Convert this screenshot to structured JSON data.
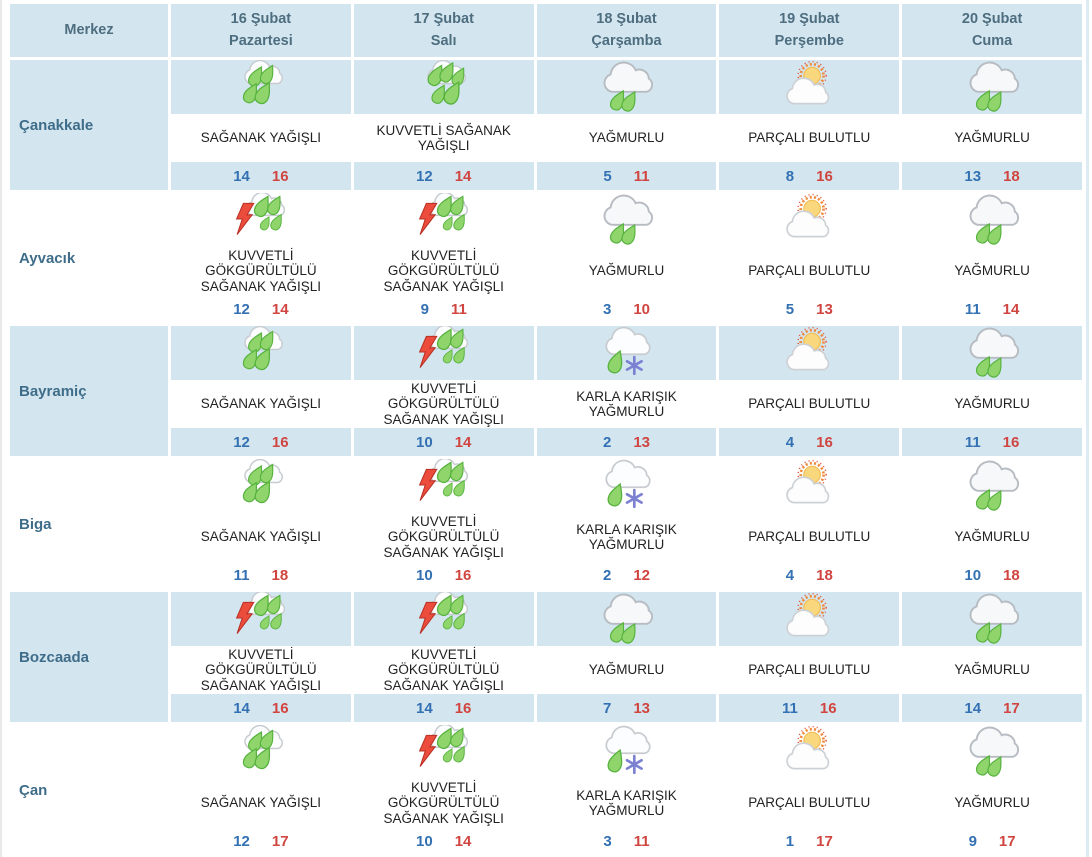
{
  "colors": {
    "cell_blue": "#d3e6f0",
    "header_text": "#4e6e80",
    "city_text": "#3f6d89",
    "temp_min_blue": "#3371b3",
    "temp_max_red": "#d04540",
    "rain_drop_green": "#8fd56c",
    "lightning_red": "#ec4c3b",
    "snowflake_violet": "#7d81d1",
    "sun_yellow": "#f9d77d"
  },
  "table": {
    "header": {
      "merkez_label": "Merkez",
      "days": [
        {
          "date": "16 Şubat",
          "weekday": "Pazartesi"
        },
        {
          "date": "17 Şubat",
          "weekday": "Salı"
        },
        {
          "date": "18 Şubat",
          "weekday": "Çarşamba"
        },
        {
          "date": "19 Şubat",
          "weekday": "Perşembe"
        },
        {
          "date": "20 Şubat",
          "weekday": "Cuma"
        }
      ]
    },
    "rows": [
      {
        "city": "Çanakkale",
        "cells": [
          {
            "icon": "shower-rain-icon",
            "condition": "SAĞANAK YAĞIŞLI",
            "temp_min": "14",
            "temp_max": "16"
          },
          {
            "icon": "heavy-shower-rain-icon",
            "condition": "KUVVETLİ SAĞANAK YAĞIŞLI",
            "temp_min": "12",
            "temp_max": "14"
          },
          {
            "icon": "rain-icon",
            "condition": "YAĞMURLU",
            "temp_min": "5",
            "temp_max": "11"
          },
          {
            "icon": "sun-behind-cloud-icon",
            "condition": "PARÇALI BULUTLU",
            "temp_min": "8",
            "temp_max": "16"
          },
          {
            "icon": "rain-icon",
            "condition": "YAĞMURLU",
            "temp_min": "13",
            "temp_max": "18"
          }
        ]
      },
      {
        "city": "Ayvacık",
        "cells": [
          {
            "icon": "thunderstorm-rain-icon",
            "condition": "KUVVETLİ GÖKGÜRÜLTÜLÜ SAĞANAK YAĞIŞLI",
            "temp_min": "12",
            "temp_max": "14"
          },
          {
            "icon": "thunderstorm-rain-icon",
            "condition": "KUVVETLİ GÖKGÜRÜLTÜLÜ SAĞANAK YAĞIŞLI",
            "temp_min": "9",
            "temp_max": "11"
          },
          {
            "icon": "rain-icon",
            "condition": "YAĞMURLU",
            "temp_min": "3",
            "temp_max": "10"
          },
          {
            "icon": "sun-behind-cloud-icon",
            "condition": "PARÇALI BULUTLU",
            "temp_min": "5",
            "temp_max": "13"
          },
          {
            "icon": "rain-icon",
            "condition": "YAĞMURLU",
            "temp_min": "11",
            "temp_max": "14"
          }
        ]
      },
      {
        "city": "Bayramiç",
        "cells": [
          {
            "icon": "shower-rain-icon",
            "condition": "SAĞANAK YAĞIŞLI",
            "temp_min": "12",
            "temp_max": "16"
          },
          {
            "icon": "thunderstorm-rain-icon",
            "condition": "KUVVETLİ GÖKGÜRÜLTÜLÜ SAĞANAK YAĞIŞLI",
            "temp_min": "10",
            "temp_max": "14"
          },
          {
            "icon": "sleet-icon",
            "condition": "KARLA KARIŞIK YAĞMURLU",
            "temp_min": "2",
            "temp_max": "13"
          },
          {
            "icon": "sun-behind-cloud-icon",
            "condition": "PARÇALI BULUTLU",
            "temp_min": "4",
            "temp_max": "16"
          },
          {
            "icon": "rain-icon",
            "condition": "YAĞMURLU",
            "temp_min": "11",
            "temp_max": "16"
          }
        ]
      },
      {
        "city": "Biga",
        "cells": [
          {
            "icon": "shower-rain-icon",
            "condition": "SAĞANAK YAĞIŞLI",
            "temp_min": "11",
            "temp_max": "18"
          },
          {
            "icon": "thunderstorm-rain-icon",
            "condition": "KUVVETLİ GÖKGÜRÜLTÜLÜ SAĞANAK YAĞIŞLI",
            "temp_min": "10",
            "temp_max": "16"
          },
          {
            "icon": "sleet-icon",
            "condition": "KARLA KARIŞIK YAĞMURLU",
            "temp_min": "2",
            "temp_max": "12"
          },
          {
            "icon": "sun-behind-cloud-icon",
            "condition": "PARÇALI BULUTLU",
            "temp_min": "4",
            "temp_max": "18"
          },
          {
            "icon": "rain-icon",
            "condition": "YAĞMURLU",
            "temp_min": "10",
            "temp_max": "18"
          }
        ]
      },
      {
        "city": "Bozcaada",
        "cells": [
          {
            "icon": "thunderstorm-rain-icon",
            "condition": "KUVVETLİ GÖKGÜRÜLTÜLÜ SAĞANAK YAĞIŞLI",
            "temp_min": "14",
            "temp_max": "16"
          },
          {
            "icon": "thunderstorm-rain-icon",
            "condition": "KUVVETLİ GÖKGÜRÜLTÜLÜ SAĞANAK YAĞIŞLI",
            "temp_min": "14",
            "temp_max": "16"
          },
          {
            "icon": "rain-icon",
            "condition": "YAĞMURLU",
            "temp_min": "7",
            "temp_max": "13"
          },
          {
            "icon": "sun-behind-cloud-icon",
            "condition": "PARÇALI BULUTLU",
            "temp_min": "11",
            "temp_max": "16"
          },
          {
            "icon": "rain-icon",
            "condition": "YAĞMURLU",
            "temp_min": "14",
            "temp_max": "17"
          }
        ]
      },
      {
        "city": "Çan",
        "cells": [
          {
            "icon": "shower-rain-icon",
            "condition": "SAĞANAK YAĞIŞLI",
            "temp_min": "12",
            "temp_max": "17"
          },
          {
            "icon": "thunderstorm-rain-icon",
            "condition": "KUVVETLİ GÖKGÜRÜLTÜLÜ SAĞANAK YAĞIŞLI",
            "temp_min": "10",
            "temp_max": "14"
          },
          {
            "icon": "sleet-icon",
            "condition": "KARLA KARIŞIK YAĞMURLU",
            "temp_min": "3",
            "temp_max": "11"
          },
          {
            "icon": "sun-behind-cloud-icon",
            "condition": "PARÇALI BULUTLU",
            "temp_min": "1",
            "temp_max": "17"
          },
          {
            "icon": "rain-icon",
            "condition": "YAĞMURLU",
            "temp_min": "9",
            "temp_max": "17"
          }
        ]
      }
    ]
  }
}
